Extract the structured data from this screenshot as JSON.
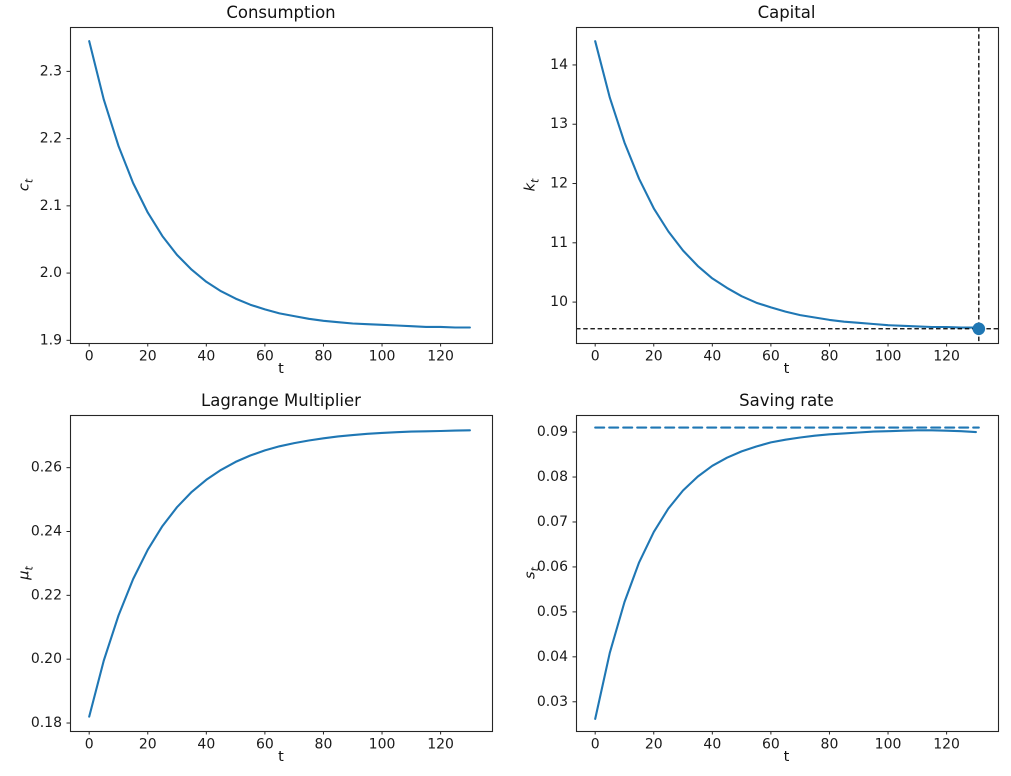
{
  "figure": {
    "background": "#ffffff",
    "line_blue": "#1f77b4",
    "dashed_black": "#000000",
    "text_color": "#111111"
  },
  "chart_data": [
    {
      "type": "line",
      "title": "Consumption",
      "xlabel": "t",
      "ylabel_main": "c",
      "ylabel_sub": "t",
      "xlim": [
        -6.55,
        137.55
      ],
      "ylim": [
        1.896,
        2.366
      ],
      "grid": false,
      "legend": "none",
      "xticks": [
        0,
        20,
        40,
        60,
        80,
        100,
        120
      ],
      "xtick_labels": [
        "0",
        "20",
        "40",
        "60",
        "80",
        "100",
        "120"
      ],
      "yticks": [
        1.9,
        2.0,
        2.1,
        2.2,
        2.3
      ],
      "ytick_labels": [
        "1.9",
        "2.0",
        "2.1",
        "2.2",
        "2.3"
      ],
      "series": [
        {
          "name": "consumption-path-line",
          "color": "#1f77b4",
          "width": 2.1,
          "dash": null,
          "x": [
            0,
            5,
            10,
            15,
            20,
            25,
            30,
            35,
            40,
            45,
            50,
            55,
            60,
            65,
            70,
            75,
            80,
            85,
            90,
            95,
            100,
            105,
            110,
            115,
            120,
            125,
            130
          ],
          "y": [
            2.345,
            2.258,
            2.189,
            2.134,
            2.09,
            2.055,
            2.027,
            2.005,
            1.987,
            1.973,
            1.962,
            1.953,
            1.946,
            1.94,
            1.936,
            1.932,
            1.929,
            1.927,
            1.925,
            1.924,
            1.923,
            1.922,
            1.921,
            1.92,
            1.92,
            1.919,
            1.919
          ]
        }
      ],
      "annotations": {
        "hlines": [],
        "vlines": [],
        "markers": []
      }
    },
    {
      "type": "line",
      "title": "Capital",
      "xlabel": "t",
      "ylabel_main": "k",
      "ylabel_sub": "t",
      "xlim": [
        -6.55,
        137.55
      ],
      "ylim": [
        9.31,
        14.64
      ],
      "grid": false,
      "legend": "none",
      "xticks": [
        0,
        20,
        40,
        60,
        80,
        100,
        120
      ],
      "xtick_labels": [
        "0",
        "20",
        "40",
        "60",
        "80",
        "100",
        "120"
      ],
      "yticks": [
        10,
        11,
        12,
        13,
        14
      ],
      "ytick_labels": [
        "10",
        "11",
        "12",
        "13",
        "14"
      ],
      "series": [
        {
          "name": "capital-path-line",
          "color": "#1f77b4",
          "width": 2.1,
          "dash": null,
          "x": [
            0,
            5,
            10,
            15,
            20,
            25,
            30,
            35,
            40,
            45,
            50,
            55,
            60,
            65,
            70,
            75,
            80,
            85,
            90,
            95,
            100,
            105,
            110,
            115,
            120,
            125,
            130
          ],
          "y": [
            14.4,
            13.45,
            12.69,
            12.08,
            11.58,
            11.19,
            10.87,
            10.61,
            10.4,
            10.24,
            10.1,
            9.99,
            9.91,
            9.84,
            9.78,
            9.74,
            9.7,
            9.67,
            9.65,
            9.63,
            9.61,
            9.6,
            9.59,
            9.58,
            9.58,
            9.57,
            9.57
          ]
        }
      ],
      "annotations": {
        "hlines": [
          {
            "y": 9.55,
            "color": "#000000",
            "width": 1.3,
            "dash": [
              4.5,
              2.7
            ],
            "name": "capital-steady-state-hline"
          }
        ],
        "vlines": [
          {
            "x": 131,
            "color": "#000000",
            "width": 1.3,
            "dash": [
              4.5,
              2.7
            ],
            "name": "capital-terminal-vline"
          }
        ],
        "markers": [
          {
            "x": 131,
            "y": 9.55,
            "r": 6.3,
            "color": "#1f77b4",
            "name": "capital-steady-state-marker"
          }
        ]
      }
    },
    {
      "type": "line",
      "title": "Lagrange Multiplier",
      "xlabel": "t",
      "ylabel_main": "μ",
      "ylabel_sub": "t",
      "xlim": [
        -6.55,
        137.55
      ],
      "ylim": [
        0.1775,
        0.2765
      ],
      "grid": false,
      "legend": "none",
      "xticks": [
        0,
        20,
        40,
        60,
        80,
        100,
        120
      ],
      "xtick_labels": [
        "0",
        "20",
        "40",
        "60",
        "80",
        "100",
        "120"
      ],
      "yticks": [
        0.18,
        0.2,
        0.22,
        0.24,
        0.26
      ],
      "ytick_labels": [
        "0.18",
        "0.20",
        "0.22",
        "0.24",
        "0.26"
      ],
      "series": [
        {
          "name": "lagrange-multiplier-line",
          "color": "#1f77b4",
          "width": 2.1,
          "dash": null,
          "x": [
            0,
            5,
            10,
            15,
            20,
            25,
            30,
            35,
            40,
            45,
            50,
            55,
            60,
            65,
            70,
            75,
            80,
            85,
            90,
            95,
            100,
            105,
            110,
            115,
            120,
            125,
            130
          ],
          "y": [
            0.182,
            0.1996,
            0.2137,
            0.2251,
            0.2343,
            0.2417,
            0.2476,
            0.2524,
            0.2562,
            0.2593,
            0.2618,
            0.2638,
            0.2654,
            0.2667,
            0.2677,
            0.2685,
            0.2692,
            0.2698,
            0.2702,
            0.2706,
            0.2709,
            0.2711,
            0.2713,
            0.2714,
            0.2715,
            0.2716,
            0.2717
          ]
        }
      ],
      "annotations": {
        "hlines": [],
        "vlines": [],
        "markers": []
      }
    },
    {
      "type": "line",
      "title": "Saving rate",
      "xlabel": "t",
      "ylabel_main": "s",
      "ylabel_sub": "t",
      "xlim": [
        -6.55,
        137.55
      ],
      "ylim": [
        0.0235,
        0.0938
      ],
      "grid": false,
      "legend": "none",
      "xticks": [
        0,
        20,
        40,
        60,
        80,
        100,
        120
      ],
      "xtick_labels": [
        "0",
        "20",
        "40",
        "60",
        "80",
        "100",
        "120"
      ],
      "yticks": [
        0.03,
        0.04,
        0.05,
        0.06,
        0.07,
        0.08,
        0.09
      ],
      "ytick_labels": [
        "0.03",
        "0.04",
        "0.05",
        "0.06",
        "0.07",
        "0.08",
        "0.09"
      ],
      "series": [
        {
          "name": "saving-rate-line",
          "color": "#1f77b4",
          "width": 2.1,
          "dash": null,
          "x": [
            0,
            5,
            10,
            15,
            20,
            25,
            30,
            35,
            40,
            45,
            50,
            55,
            60,
            65,
            70,
            75,
            80,
            85,
            90,
            95,
            100,
            105,
            110,
            115,
            120,
            125,
            130
          ],
          "y": [
            0.0262,
            0.0409,
            0.0522,
            0.061,
            0.0678,
            0.073,
            0.077,
            0.0801,
            0.0825,
            0.0843,
            0.0857,
            0.0868,
            0.0877,
            0.0883,
            0.0888,
            0.0892,
            0.0895,
            0.0897,
            0.0899,
            0.0901,
            0.0902,
            0.0903,
            0.0904,
            0.0904,
            0.0903,
            0.0902,
            0.09
          ]
        },
        {
          "name": "saving-rate-steady-state-dashed",
          "color": "#1f77b4",
          "width": 2.1,
          "dash": [
            9,
            5
          ],
          "x": [
            0,
            131
          ],
          "y": [
            0.091,
            0.091
          ]
        }
      ],
      "annotations": {
        "hlines": [],
        "vlines": [],
        "markers": []
      }
    }
  ]
}
